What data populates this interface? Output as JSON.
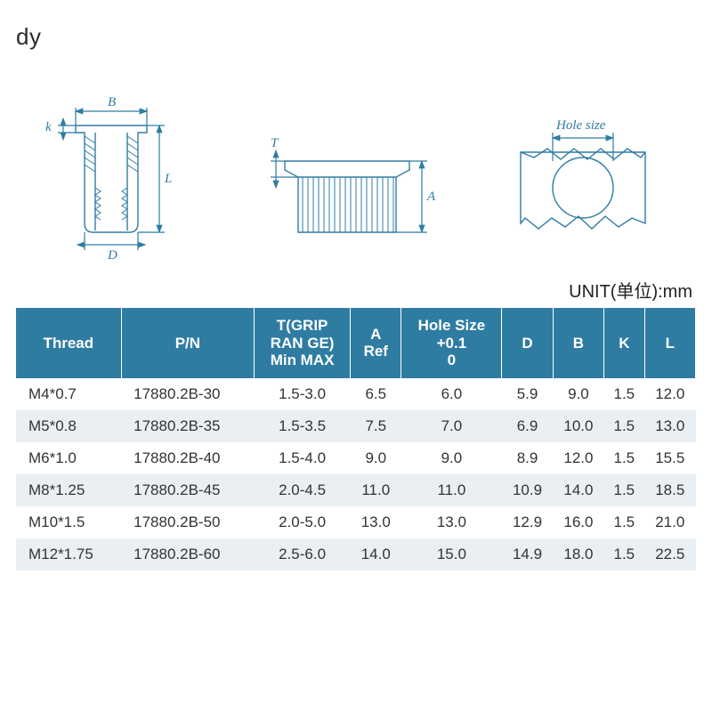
{
  "fragment_text": "dy",
  "unit_label": "UNIT(单位):mm",
  "diagrams": {
    "stroke_color": "#2f7ca3",
    "labels": {
      "B": "B",
      "k": "k",
      "L": "L",
      "D": "D",
      "T": "T",
      "A": "A",
      "hole": "Hole size"
    }
  },
  "table": {
    "header_bg": "#2f7ca3",
    "header_fg": "#ffffff",
    "row_alt_bg": "#e9eff3",
    "columns": [
      "Thread",
      "P/N",
      "T(GRIP\nRAN GE)\nMin MAX",
      "A\nRef",
      "Hole Size\n+0.1\n0",
      "D",
      "B",
      "K",
      "L"
    ],
    "rows": [
      [
        "M4*0.7",
        "17880.2B-30",
        "1.5-3.0",
        "6.5",
        "6.0",
        "5.9",
        "9.0",
        "1.5",
        "12.0"
      ],
      [
        "M5*0.8",
        "17880.2B-35",
        "1.5-3.5",
        "7.5",
        "7.0",
        "6.9",
        "10.0",
        "1.5",
        "13.0"
      ],
      [
        "M6*1.0",
        "17880.2B-40",
        "1.5-4.0",
        "9.0",
        "9.0",
        "8.9",
        "12.0",
        "1.5",
        "15.5"
      ],
      [
        "M8*1.25",
        "17880.2B-45",
        "2.0-4.5",
        "11.0",
        "11.0",
        "10.9",
        "14.0",
        "1.5",
        "18.5"
      ],
      [
        "M10*1.5",
        "17880.2B-50",
        "2.0-5.0",
        "13.0",
        "13.0",
        "12.9",
        "16.0",
        "1.5",
        "21.0"
      ],
      [
        "M12*1.75",
        "17880.2B-60",
        "2.5-6.0",
        "14.0",
        "15.0",
        "14.9",
        "18.0",
        "1.5",
        "22.5"
      ]
    ]
  }
}
